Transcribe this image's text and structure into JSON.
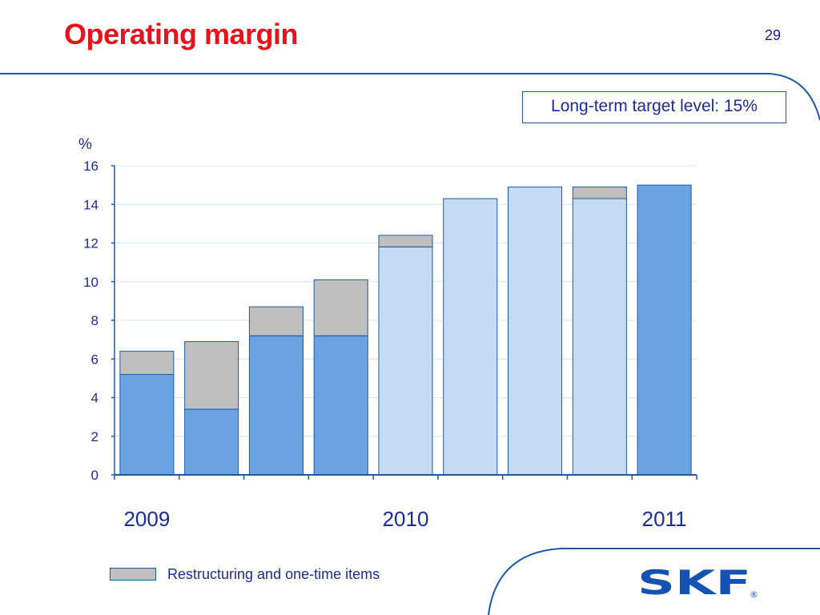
{
  "slide": {
    "title": "Operating margin",
    "page_number": "29",
    "target_text": "Long-term target level: 15%",
    "legend_label": "Restructuring and one-time items",
    "logo_text": "SKF",
    "logo_mark": "®"
  },
  "colors": {
    "title": "#e8121c",
    "text": "#1a2c9c",
    "frame": "#1e5aa8",
    "bar_dark": "#6ba3e0",
    "bar_light": "#c5daf3",
    "restructuring": "#bfbfbf",
    "gridline": "#d6e4f4"
  },
  "chart_data": {
    "type": "bar",
    "stacked": true,
    "unit_label": "%",
    "ylim": [
      0,
      16
    ],
    "yticks": [
      "0",
      "2",
      "4",
      "6",
      "8",
      "10",
      "12",
      "14",
      "16"
    ],
    "grid": true,
    "year_labels": [
      {
        "label": "2009",
        "bar_index": 0
      },
      {
        "label": "2010",
        "bar_index": 4
      },
      {
        "label": "2011",
        "bar_index": 8
      }
    ],
    "series": [
      {
        "name": "",
        "values": [
          5.2,
          3.4,
          7.2,
          7.2,
          11.8,
          14.3,
          14.9,
          14.3,
          15.0
        ],
        "shades": [
          "dark",
          "dark",
          "dark",
          "dark",
          "light",
          "light",
          "light",
          "light",
          "dark"
        ]
      },
      {
        "name": "Restructuring and one-time items",
        "values": [
          1.2,
          3.5,
          1.5,
          2.9,
          0.6,
          0,
          0,
          0.6,
          0
        ]
      }
    ],
    "legend_position": "bottom-left"
  }
}
